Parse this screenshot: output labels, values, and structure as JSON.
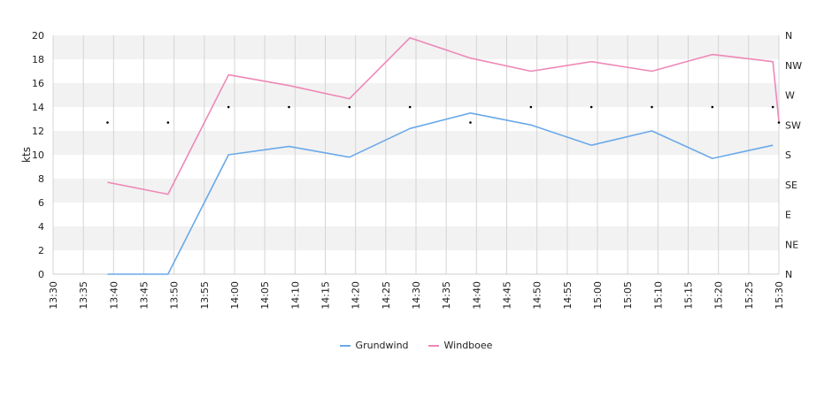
{
  "chart_data": {
    "type": "line",
    "ylabel": "kts",
    "ylim": [
      0,
      20
    ],
    "yticks": [
      0,
      2,
      4,
      6,
      8,
      10,
      12,
      14,
      16,
      18,
      20
    ],
    "x_ticks": [
      "13:30",
      "13:35",
      "13:40",
      "13:45",
      "13:50",
      "13:55",
      "14:00",
      "14:05",
      "14:10",
      "14:15",
      "14:20",
      "14:25",
      "14:30",
      "14:35",
      "14:40",
      "14:45",
      "14:50",
      "14:55",
      "15:00",
      "15:05",
      "15:10",
      "15:15",
      "15:20",
      "15:25",
      "15:30"
    ],
    "right_axis_labels": [
      "N",
      "NE",
      "E",
      "SE",
      "S",
      "SW",
      "W",
      "NW",
      "N"
    ],
    "series": [
      {
        "name": "Grundwind",
        "color": "#6aa9e9",
        "x": [
          "13:39",
          "13:49",
          "13:59",
          "14:09",
          "14:19",
          "14:29",
          "14:39",
          "14:49",
          "14:59",
          "15:09",
          "15:19",
          "15:29"
        ],
        "values": [
          0,
          0,
          10,
          10.7,
          9.8,
          12.2,
          13.5,
          12.5,
          10.8,
          12,
          9.7,
          10.8
        ]
      },
      {
        "name": "Windboee",
        "color": "#ee88b8",
        "x": [
          "13:39",
          "13:49",
          "13:59",
          "14:09",
          "14:19",
          "14:29",
          "14:39",
          "14:49",
          "14:59",
          "15:09",
          "15:19",
          "15:29",
          "15:30"
        ],
        "values": [
          7.7,
          6.7,
          16.7,
          15.8,
          14.7,
          19.8,
          18.1,
          17,
          17.8,
          17,
          18.4,
          17.8,
          12.8
        ]
      }
    ],
    "direction_markers": {
      "x": [
        "13:39",
        "13:49",
        "13:59",
        "14:09",
        "14:19",
        "14:29",
        "14:39",
        "14:49",
        "14:59",
        "15:09",
        "15:19",
        "15:29",
        "15:30"
      ],
      "values": [
        12.7,
        12.7,
        14,
        14,
        14,
        14,
        12.7,
        14,
        14,
        14,
        14,
        14,
        12.7
      ]
    },
    "grid": true,
    "legend": "bottom-center"
  }
}
